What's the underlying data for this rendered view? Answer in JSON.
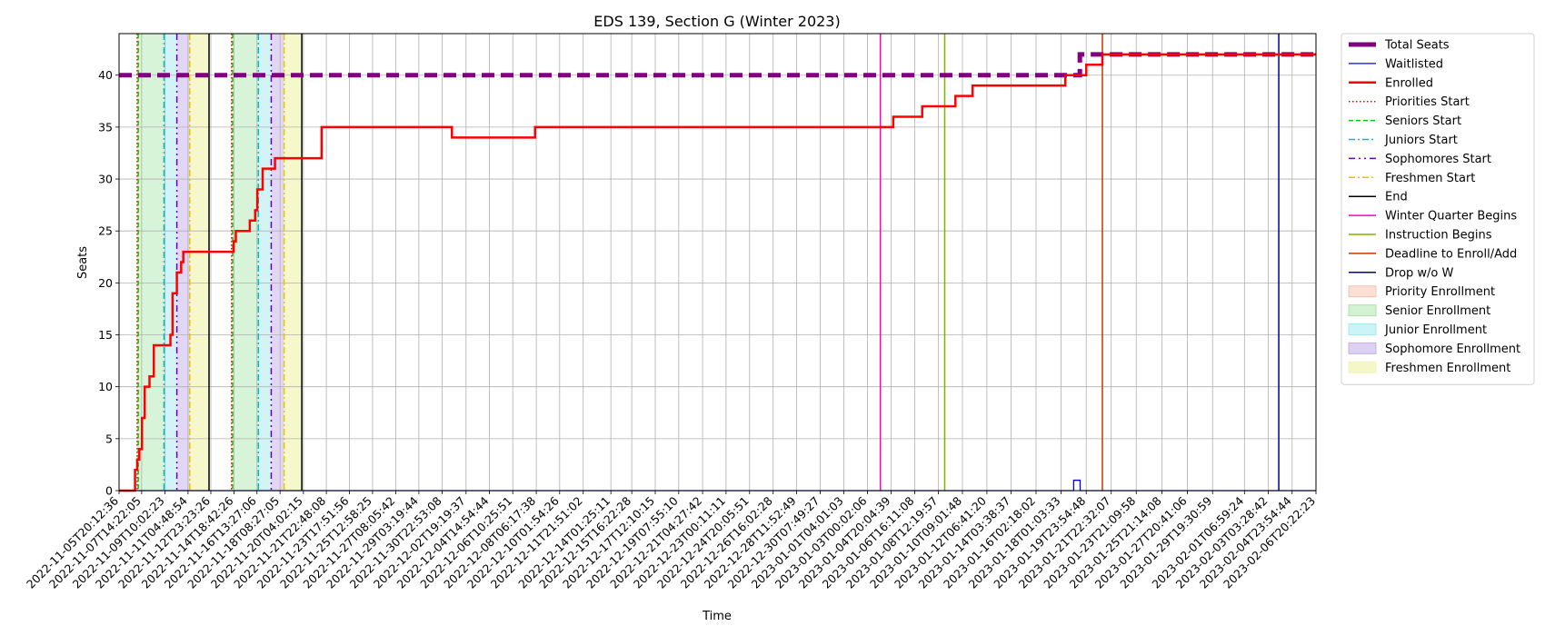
{
  "chart_data": {
    "type": "line",
    "title": "EDS 139, Section G (Winter 2023)",
    "xlabel": "Time",
    "ylabel": "Seats",
    "x_range": [
      "2022-11-05T20:12:36",
      "2023-02-06T20:22:23"
    ],
    "ylim": [
      0,
      44
    ],
    "grid": true,
    "legend_position": "outside-right",
    "x_ticks": [
      "2022-11-05T20:12:36",
      "2022-11-07T14:22:05",
      "2022-11-09T10:02:23",
      "2022-11-11T04:48:54",
      "2022-11-12T23:23:26",
      "2022-11-14T18:42:26",
      "2022-11-16T13:27:06",
      "2022-11-18T08:27:05",
      "2022-11-20T04:02:15",
      "2022-11-21T22:48:08",
      "2022-11-23T17:51:56",
      "2022-11-25T12:58:25",
      "2022-11-27T08:05:42",
      "2022-11-29T03:19:44",
      "2022-11-30T22:53:08",
      "2022-12-02T19:19:37",
      "2022-12-04T14:54:44",
      "2022-12-06T10:25:51",
      "2022-12-08T06:17:38",
      "2022-12-10T01:54:26",
      "2022-12-11T21:51:02",
      "2022-12-14T01:25:11",
      "2022-12-15T16:22:28",
      "2022-12-17T12:10:15",
      "2022-12-19T07:55:10",
      "2022-12-21T04:27:42",
      "2022-12-23T00:11:11",
      "2022-12-24T20:05:51",
      "2022-12-26T16:02:28",
      "2022-12-28T11:52:49",
      "2022-12-30T07:49:27",
      "2023-01-01T04:01:03",
      "2023-01-03T00:02:06",
      "2023-01-04T20:04:39",
      "2023-01-06T16:11:08",
      "2023-01-08T12:19:57",
      "2023-01-10T09:01:48",
      "2023-01-12T06:41:20",
      "2023-01-14T03:38:37",
      "2023-01-16T02:18:02",
      "2023-01-18T01:03:33",
      "2023-01-19T23:54:48",
      "2023-01-21T22:32:07",
      "2023-01-23T21:09:58",
      "2023-01-25T21:14:08",
      "2023-01-27T20:41:06",
      "2023-01-29T19:30:59",
      "2023-02-01T06:59:24",
      "2023-02-03T03:28:42",
      "2023-02-04T23:54:44",
      "2023-02-06T20:22:23"
    ],
    "y_ticks": [
      0,
      5,
      10,
      15,
      20,
      25,
      30,
      35,
      40
    ],
    "series": [
      {
        "name": "Total Seats",
        "color": "#800080",
        "style": "dashed-thick",
        "x": [
          "2022-11-05T20:12:36",
          "2023-01-19T10:00:00",
          "2023-01-19T12:00:00",
          "2023-02-06T20:22:23"
        ],
        "y": [
          40,
          40,
          42,
          42
        ]
      },
      {
        "name": "Waitlisted",
        "color": "#0000ff",
        "style": "solid-thin",
        "x": [
          "2022-11-05T20:12:36",
          "2023-01-19T00:00:00",
          "2023-01-19T00:30:00",
          "2023-01-19T12:00:00",
          "2023-01-19T12:30:00",
          "2023-02-06T20:22:23"
        ],
        "y": [
          0,
          0,
          1,
          1,
          0,
          0
        ]
      },
      {
        "name": "Enrolled",
        "color": "#ff0000",
        "style": "solid",
        "x": [
          "2022-11-05T20:12:36",
          "2022-11-07T02:00:00",
          "2022-11-07T06:00:00",
          "2022-11-07T10:00:00",
          "2022-11-07T15:00:00",
          "2022-11-07T20:00:00",
          "2022-11-08T05:00:00",
          "2022-11-08T13:00:00",
          "2022-11-09T20:00:00",
          "2022-11-10T00:00:00",
          "2022-11-10T04:00:00",
          "2022-11-10T08:00:00",
          "2022-11-10T16:00:00",
          "2022-11-10T20:00:00",
          "2022-11-11T00:00:00",
          "2022-11-11T08:00:00",
          "2022-11-14T18:00:00",
          "2022-11-14T22:00:00",
          "2022-11-16T00:00:00",
          "2022-11-16T10:00:00",
          "2022-11-16T14:00:00",
          "2022-11-17T00:00:00",
          "2022-11-17T23:00:00",
          "2022-11-20T00:00:00",
          "2022-11-21T14:00:00",
          "2022-12-01T17:00:00",
          "2022-12-08T04:00:00",
          "2023-01-05T00:00:00",
          "2023-01-07T06:00:00",
          "2023-01-09T20:00:00",
          "2023-01-11T04:00:00",
          "2023-01-18T09:00:00",
          "2023-01-19T06:00:00",
          "2023-01-20T00:00:00",
          "2023-01-21T06:00:00",
          "2023-02-06T20:22:23"
        ],
        "y": [
          0,
          2,
          3,
          4,
          7,
          10,
          11,
          14,
          15,
          19,
          19,
          21,
          22,
          23,
          23,
          23,
          24,
          25,
          26,
          27,
          29,
          31,
          32,
          32,
          35,
          34,
          35,
          36,
          37,
          38,
          39,
          40,
          40,
          41,
          42,
          42
        ]
      }
    ],
    "vertical_lines": [
      {
        "name": "Priorities Start",
        "color": "#ff0000",
        "style": "dotted",
        "x": [
          "2022-11-07T06:00:00",
          "2022-11-14T14:00:00"
        ]
      },
      {
        "name": "Seniors Start",
        "color": "#00cc00",
        "style": "dashed",
        "x": [
          "2022-11-07T08:00:00",
          "2022-11-14T16:00:00"
        ]
      },
      {
        "name": "Juniors Start",
        "color": "#00bfbf",
        "style": "dashdot",
        "x": [
          "2022-11-09T08:00:00",
          "2022-11-16T16:00:00"
        ]
      },
      {
        "name": "Sophomores Start",
        "color": "#6600cc",
        "style": "dashdotdot",
        "x": [
          "2022-11-10T08:00:00",
          "2022-11-17T16:00:00"
        ]
      },
      {
        "name": "Freshmen Start",
        "color": "#e6c200",
        "style": "dashdot",
        "x": [
          "2022-11-11T08:00:00",
          "2022-11-18T16:00:00"
        ]
      },
      {
        "name": "End",
        "color": "#000000",
        "style": "solid",
        "x": [
          "2022-11-12T20:00:00",
          "2022-11-20T01:00:00"
        ]
      },
      {
        "name": "Winter Quarter Begins",
        "color": "#ff00cc",
        "style": "solid",
        "x": [
          "2023-01-04T00:00:00"
        ]
      },
      {
        "name": "Instruction Begins",
        "color": "#80b000",
        "style": "solid",
        "x": [
          "2023-01-09T00:00:00"
        ]
      },
      {
        "name": "Deadline to Enroll/Add",
        "color": "#cc3300",
        "style": "solid",
        "x": [
          "2023-01-21T06:00:00"
        ]
      },
      {
        "name": "Drop w/o W",
        "color": "#000099",
        "style": "solid",
        "x": [
          "2023-02-03T23:00:00"
        ]
      }
    ],
    "shaded_periods": [
      {
        "name": "Priority Enrollment",
        "color": "#f4a582",
        "opacity": 0.35,
        "ranges": [
          [
            "2022-11-07T06:00:00",
            "2022-11-07T08:00:00"
          ],
          [
            "2022-11-14T14:00:00",
            "2022-11-14T16:00:00"
          ]
        ]
      },
      {
        "name": "Senior Enrollment",
        "color": "#7fd97f",
        "opacity": 0.3,
        "ranges": [
          [
            "2022-11-07T08:00:00",
            "2022-11-09T08:00:00"
          ],
          [
            "2022-11-14T16:00:00",
            "2022-11-16T16:00:00"
          ]
        ]
      },
      {
        "name": "Junior Enrollment",
        "color": "#7fe0e6",
        "opacity": 0.35,
        "ranges": [
          [
            "2022-11-09T08:00:00",
            "2022-11-10T08:00:00"
          ],
          [
            "2022-11-16T16:00:00",
            "2022-11-17T16:00:00"
          ]
        ]
      },
      {
        "name": "Sophomore Enrollment",
        "color": "#a98be0",
        "opacity": 0.35,
        "ranges": [
          [
            "2022-11-10T08:00:00",
            "2022-11-11T08:00:00"
          ],
          [
            "2022-11-17T16:00:00",
            "2022-11-18T16:00:00"
          ]
        ]
      },
      {
        "name": "Freshmen Enrollment",
        "color": "#eef2a0",
        "opacity": 0.55,
        "ranges": [
          [
            "2022-11-11T08:00:00",
            "2022-11-12T20:00:00"
          ],
          [
            "2022-11-18T16:00:00",
            "2022-11-20T01:00:00"
          ]
        ]
      }
    ],
    "legend": [
      {
        "label": "Total Seats",
        "kind": "line",
        "color": "#800080",
        "dash": "",
        "width": 5
      },
      {
        "label": "Waitlisted",
        "kind": "line",
        "color": "#0000ff",
        "dash": "",
        "width": 1.2
      },
      {
        "label": "Enrolled",
        "kind": "line",
        "color": "#ff0000",
        "dash": "",
        "width": 2.5
      },
      {
        "label": "Priorities Start",
        "kind": "line",
        "color": "#ff0000",
        "dash": "1.5,2.5",
        "width": 1.5
      },
      {
        "label": "Seniors Start",
        "kind": "line",
        "color": "#00cc00",
        "dash": "5,3",
        "width": 1.5
      },
      {
        "label": "Juniors Start",
        "kind": "line",
        "color": "#00bfbf",
        "dash": "7,3,2,3",
        "width": 1.5
      },
      {
        "label": "Sophomores Start",
        "kind": "line",
        "color": "#6600cc",
        "dash": "7,4,2,4,2,4",
        "width": 1.5
      },
      {
        "label": "Freshmen Start",
        "kind": "line",
        "color": "#e6c200",
        "dash": "7,3,2,3",
        "width": 1.5
      },
      {
        "label": "End",
        "kind": "line",
        "color": "#000000",
        "dash": "",
        "width": 1.5
      },
      {
        "label": "Winter Quarter Begins",
        "kind": "line",
        "color": "#ff00cc",
        "dash": "",
        "width": 1.5
      },
      {
        "label": "Instruction Begins",
        "kind": "line",
        "color": "#80b000",
        "dash": "",
        "width": 1.5
      },
      {
        "label": "Deadline to Enroll/Add",
        "kind": "line",
        "color": "#cc3300",
        "dash": "",
        "width": 1.5
      },
      {
        "label": "Drop w/o W",
        "kind": "line",
        "color": "#000099",
        "dash": "",
        "width": 1.5
      },
      {
        "label": "Priority Enrollment",
        "kind": "patch",
        "color": "#f4a582",
        "opacity": 0.35
      },
      {
        "label": "Senior Enrollment",
        "kind": "patch",
        "color": "#7fd97f",
        "opacity": 0.35
      },
      {
        "label": "Junior Enrollment",
        "kind": "patch",
        "color": "#7fe0e6",
        "opacity": 0.4
      },
      {
        "label": "Sophomore Enrollment",
        "kind": "patch",
        "color": "#a98be0",
        "opacity": 0.4
      },
      {
        "label": "Freshmen Enrollment",
        "kind": "patch",
        "color": "#eef2a0",
        "opacity": 0.6
      }
    ]
  }
}
